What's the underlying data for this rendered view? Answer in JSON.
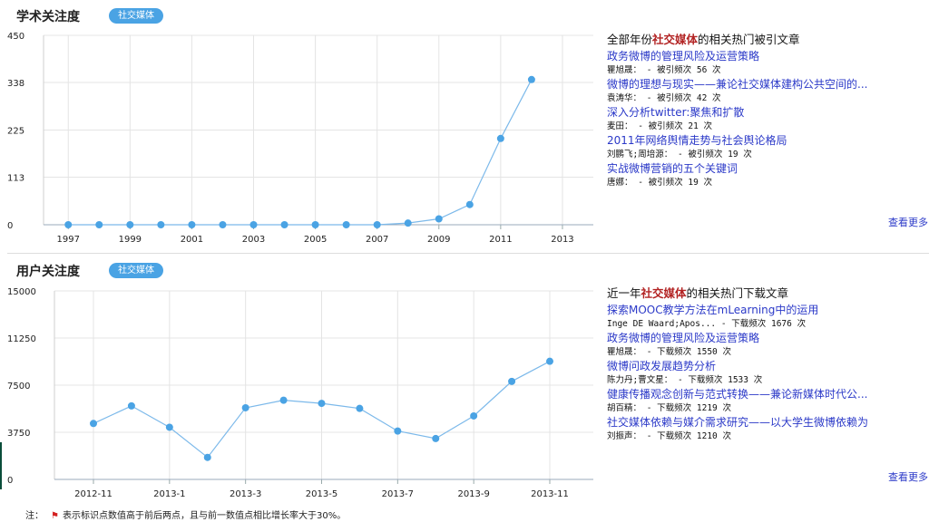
{
  "academic": {
    "title": "学术关注度",
    "badge": "社交媒体",
    "panel_heading": {
      "prefix": "全部年份",
      "highlight": "社交媒体",
      "suffix": "的相关热门被引文章"
    },
    "articles": [
      {
        "title": "政务微博的管理风险及运营策略",
        "meta": "瞿旭晟： -  被引频次 56 次"
      },
      {
        "title": "微博的理想与现实——兼论社交媒体建构公共空间的...",
        "meta": "袁涛华： -  被引频次 42 次"
      },
      {
        "title": "深入分析twitter:聚焦和扩散",
        "meta": "麦田： -  被引频次 21 次"
      },
      {
        "title": "2011年网络舆情走势与社会舆论格局",
        "meta": "刘鹏飞;周培源： -  被引频次 19 次"
      },
      {
        "title": "实战微博营销的五个关键词",
        "meta": "唐娜： -  被引频次 19 次"
      }
    ],
    "more": "查看更多"
  },
  "user": {
    "title": "用户关注度",
    "badge": "社交媒体",
    "panel_heading": {
      "prefix": "近一年",
      "highlight": "社交媒体",
      "suffix": "的相关热门下载文章"
    },
    "articles": [
      {
        "title": "探索MOOC教学方法在mLearning中的运用",
        "meta": "Inge DE Waard;Apos...  -  下载频次 1676 次"
      },
      {
        "title": "政务微博的管理风险及运营策略",
        "meta": "瞿旭晟： -  下载频次 1550 次"
      },
      {
        "title": "微博问政发展趋势分析",
        "meta": "陈力丹;曹文星： -  下载频次 1533 次"
      },
      {
        "title": "健康传播观念创新与范式转换——兼论新媒体时代公...",
        "meta": "胡百精： -  下载频次 1219 次"
      },
      {
        "title": "社交媒体依赖与媒介需求研究——以大学生微博依赖为",
        "meta": "刘振声： -  下载频次 1210 次"
      }
    ],
    "more": "查看更多"
  },
  "note": {
    "label": "注：",
    "text": "表示标识点数值高于前后两点，且与前一数值点相比增长率大于30%。"
  },
  "colors": {
    "line": "#7cb9ea",
    "point": "#4aa3e4",
    "badge": "#4aa3e4",
    "link": "#2b39c8",
    "highlight": "#b22222"
  },
  "chart_data": [
    {
      "type": "line",
      "x": [
        1997,
        1998,
        1999,
        2000,
        2001,
        2002,
        2003,
        2004,
        2005,
        2006,
        2007,
        2008,
        2009,
        2010,
        2011,
        2012
      ],
      "series": [
        {
          "values": [
            0,
            0,
            0,
            0,
            0,
            0,
            0,
            0,
            0,
            0,
            0,
            4,
            14,
            48,
            205,
            345
          ]
        }
      ],
      "xticks": [
        "1997",
        "1999",
        "2001",
        "2003",
        "2005",
        "2007",
        "2009",
        "2011",
        "2013"
      ],
      "yticks": [
        "0",
        "113",
        "225",
        "338",
        "450"
      ],
      "xlim": [
        1996.2,
        2014
      ],
      "ylim": [
        0,
        450
      ],
      "grid": true
    },
    {
      "type": "line",
      "x": [
        "2012-11",
        "2012-12",
        "2013-1",
        "2013-2",
        "2013-3",
        "2013-4",
        "2013-5",
        "2013-6",
        "2013-7",
        "2013-8",
        "2013-9",
        "2013-10",
        "2013-11"
      ],
      "series": [
        {
          "values": [
            4450,
            5850,
            4150,
            1750,
            5700,
            6300,
            6050,
            5650,
            3850,
            3250,
            5050,
            7800,
            9400
          ]
        }
      ],
      "xticks": [
        "2012-11",
        "2013-1",
        "2013-3",
        "2013-5",
        "2013-7",
        "2013-9",
        "2013-11"
      ],
      "yticks": [
        "0",
        "3750",
        "7500",
        "11250",
        "15000"
      ],
      "ylim": [
        0,
        15000
      ],
      "grid": true
    }
  ]
}
